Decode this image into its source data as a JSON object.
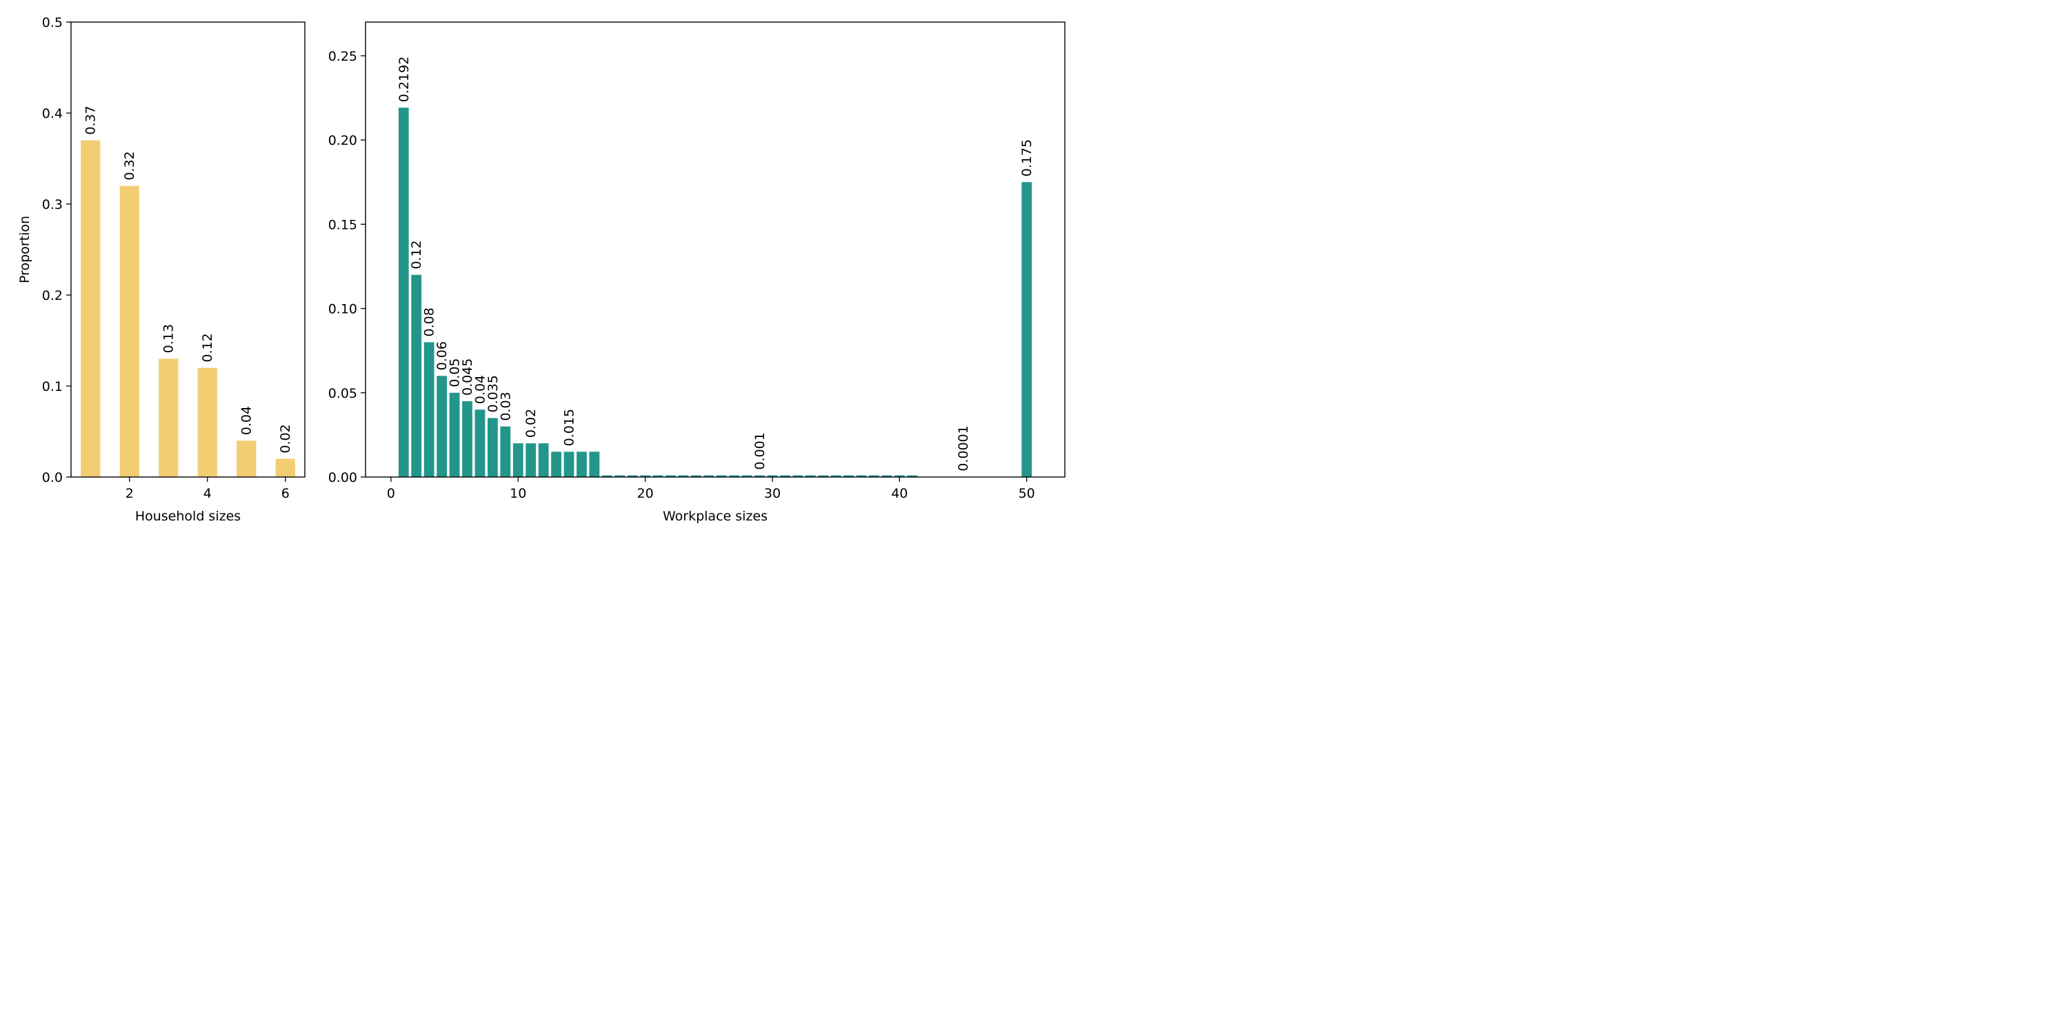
{
  "figure": {
    "colors": {
      "household": "#F3CD72",
      "workplace": "#22968A",
      "axis": "#000000"
    }
  },
  "chart_data": [
    {
      "type": "bar",
      "xlabel": "Household sizes",
      "ylabel": "Proportion",
      "xlim": [
        0.5,
        6.5
      ],
      "ylim": [
        0,
        0.5
      ],
      "xticks": [
        2,
        4,
        6
      ],
      "yticks": [
        0.0,
        0.1,
        0.2,
        0.3,
        0.4,
        0.5
      ],
      "ytick_labels": [
        "0.0",
        "0.1",
        "0.2",
        "0.3",
        "0.4",
        "0.5"
      ],
      "x": [
        1,
        2,
        3,
        4,
        5,
        6
      ],
      "values": [
        0.37,
        0.32,
        0.13,
        0.12,
        0.04,
        0.02
      ],
      "bar_width": 0.5,
      "data_labels": [
        {
          "x": 1,
          "text": "0.37"
        },
        {
          "x": 2,
          "text": "0.32"
        },
        {
          "x": 3,
          "text": "0.13"
        },
        {
          "x": 4,
          "text": "0.12"
        },
        {
          "x": 5,
          "text": "0.04"
        },
        {
          "x": 6,
          "text": "0.02"
        }
      ]
    },
    {
      "type": "bar",
      "xlabel": "Workplace sizes",
      "ylabel": "",
      "xlim": [
        -2,
        53
      ],
      "ylim": [
        0,
        0.27
      ],
      "xticks": [
        0,
        10,
        20,
        30,
        40,
        50
      ],
      "yticks": [
        0.0,
        0.05,
        0.1,
        0.15,
        0.2,
        0.25
      ],
      "ytick_labels": [
        "0.00",
        "0.05",
        "0.10",
        "0.15",
        "0.20",
        "0.25"
      ],
      "x": [
        1,
        2,
        3,
        4,
        5,
        6,
        7,
        8,
        9,
        10,
        11,
        12,
        13,
        14,
        15,
        16,
        17,
        18,
        19,
        20,
        21,
        22,
        23,
        24,
        25,
        26,
        27,
        28,
        29,
        30,
        31,
        32,
        33,
        34,
        35,
        36,
        37,
        38,
        39,
        40,
        41,
        50
      ],
      "values": [
        0.2192,
        0.12,
        0.08,
        0.06,
        0.05,
        0.045,
        0.04,
        0.035,
        0.03,
        0.02,
        0.02,
        0.02,
        0.015,
        0.015,
        0.015,
        0.015,
        0.001,
        0.001,
        0.001,
        0.001,
        0.001,
        0.001,
        0.001,
        0.001,
        0.001,
        0.001,
        0.001,
        0.001,
        0.001,
        0.001,
        0.001,
        0.001,
        0.001,
        0.001,
        0.001,
        0.001,
        0.001,
        0.001,
        0.001,
        0.001,
        0.001,
        0.175
      ],
      "bar_width": 0.8,
      "data_labels": [
        {
          "x": 1,
          "text": "0.2192"
        },
        {
          "x": 2,
          "text": "0.12"
        },
        {
          "x": 3,
          "text": "0.08"
        },
        {
          "x": 4,
          "text": "0.06"
        },
        {
          "x": 5,
          "text": "0.05"
        },
        {
          "x": 6,
          "text": "0.045"
        },
        {
          "x": 7,
          "text": "0.04"
        },
        {
          "x": 8,
          "text": "0.035"
        },
        {
          "x": 9,
          "text": "0.03"
        },
        {
          "x": 11,
          "text": "0.02"
        },
        {
          "x": 14,
          "text": "0.015"
        },
        {
          "x": 29,
          "text": "0.001"
        },
        {
          "x": 45,
          "y": 0.0001,
          "text": "0.0001"
        },
        {
          "x": 50,
          "text": "0.175"
        }
      ]
    }
  ]
}
